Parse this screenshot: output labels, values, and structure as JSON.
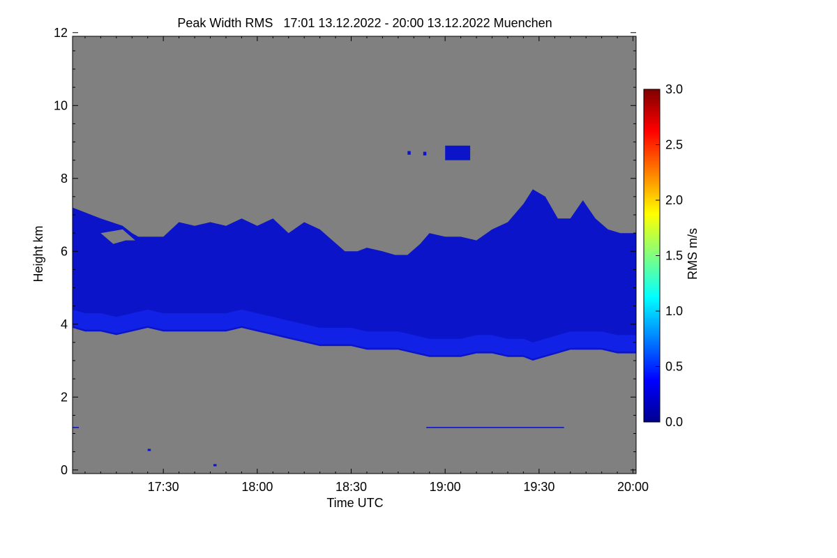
{
  "chart_data": {
    "type": "heatmap",
    "title": "Peak Width RMS   17:01 13.12.2022 - 20:00 13.12.2022 Muenchen",
    "xlabel": "Time UTC",
    "ylabel": "Height km",
    "colorbar_label": "RMS m/s",
    "x_ticks": [
      "17:30",
      "18:00",
      "18:30",
      "19:00",
      "19:30",
      "20:00"
    ],
    "x_tick_minutes": [
      1050,
      1080,
      1110,
      1140,
      1170,
      1200
    ],
    "xlim_minutes": [
      1021,
      1201
    ],
    "y_ticks": [
      "0",
      "2",
      "4",
      "6",
      "8",
      "10",
      "12"
    ],
    "y_tick_values": [
      0,
      2,
      4,
      6,
      8,
      10,
      12
    ],
    "ylim": [
      -0.1,
      11.9
    ],
    "colorbar_ticks": [
      "0.0",
      "0.5",
      "1.0",
      "1.5",
      "2.0",
      "2.5",
      "3.0"
    ],
    "colorbar_tick_values": [
      0,
      0.5,
      1.0,
      1.5,
      2.0,
      2.5,
      3.0
    ],
    "colorbar_range": [
      0,
      3.0
    ],
    "colors": {
      "background": "#808080",
      "signal_dark": "#0b14c8",
      "signal_bright": "#1a2cff",
      "colormap": [
        "#00008f",
        "#0000ff",
        "#0080ff",
        "#00ffff",
        "#80ff80",
        "#ffff00",
        "#ff8000",
        "#ff0000",
        "#800000"
      ]
    },
    "cloud_layer": {
      "description_value_rms": 0.3,
      "top_km": [
        [
          1021,
          7.2
        ],
        [
          1024,
          7.1
        ],
        [
          1030,
          6.9
        ],
        [
          1037,
          6.7
        ],
        [
          1040,
          6.5
        ],
        [
          1042,
          6.4
        ],
        [
          1050,
          6.4
        ],
        [
          1055,
          6.8
        ],
        [
          1060,
          6.7
        ],
        [
          1065,
          6.8
        ],
        [
          1070,
          6.7
        ],
        [
          1075,
          6.9
        ],
        [
          1080,
          6.7
        ],
        [
          1085,
          6.9
        ],
        [
          1090,
          6.5
        ],
        [
          1095,
          6.8
        ],
        [
          1100,
          6.6
        ],
        [
          1104,
          6.3
        ],
        [
          1108,
          6.0
        ],
        [
          1112,
          6.0
        ],
        [
          1115,
          6.1
        ],
        [
          1120,
          6.0
        ],
        [
          1124,
          5.9
        ],
        [
          1128,
          5.9
        ],
        [
          1132,
          6.2
        ],
        [
          1135,
          6.5
        ],
        [
          1140,
          6.4
        ],
        [
          1145,
          6.4
        ],
        [
          1150,
          6.3
        ],
        [
          1155,
          6.6
        ],
        [
          1160,
          6.8
        ],
        [
          1165,
          7.3
        ],
        [
          1168,
          7.7
        ],
        [
          1172,
          7.5
        ],
        [
          1176,
          6.9
        ],
        [
          1180,
          6.9
        ],
        [
          1184,
          7.4
        ],
        [
          1188,
          6.9
        ],
        [
          1192,
          6.6
        ],
        [
          1196,
          6.5
        ],
        [
          1201,
          6.5
        ]
      ],
      "base_km": [
        [
          1021,
          3.9
        ],
        [
          1025,
          3.8
        ],
        [
          1030,
          3.8
        ],
        [
          1035,
          3.7
        ],
        [
          1040,
          3.8
        ],
        [
          1045,
          3.9
        ],
        [
          1050,
          3.8
        ],
        [
          1055,
          3.8
        ],
        [
          1060,
          3.8
        ],
        [
          1065,
          3.8
        ],
        [
          1070,
          3.8
        ],
        [
          1075,
          3.9
        ],
        [
          1080,
          3.8
        ],
        [
          1085,
          3.7
        ],
        [
          1090,
          3.6
        ],
        [
          1095,
          3.5
        ],
        [
          1100,
          3.4
        ],
        [
          1105,
          3.4
        ],
        [
          1110,
          3.4
        ],
        [
          1115,
          3.3
        ],
        [
          1120,
          3.3
        ],
        [
          1125,
          3.3
        ],
        [
          1130,
          3.2
        ],
        [
          1135,
          3.1
        ],
        [
          1140,
          3.1
        ],
        [
          1145,
          3.1
        ],
        [
          1150,
          3.2
        ],
        [
          1155,
          3.2
        ],
        [
          1160,
          3.1
        ],
        [
          1165,
          3.1
        ],
        [
          1168,
          3.0
        ],
        [
          1172,
          3.1
        ],
        [
          1176,
          3.2
        ],
        [
          1180,
          3.3
        ],
        [
          1185,
          3.3
        ],
        [
          1190,
          3.3
        ],
        [
          1195,
          3.2
        ],
        [
          1201,
          3.2
        ]
      ],
      "gaps": [
        [
          [
            1030,
            6.5
          ],
          [
            1034,
            6.2
          ],
          [
            1038,
            6.3
          ],
          [
            1041,
            6.3
          ],
          [
            1037,
            6.6
          ]
        ]
      ]
    },
    "isolated_patches": [
      {
        "x": [
          1140,
          1148
        ],
        "bottom_km": 8.5,
        "top_km": 8.9
      },
      {
        "x": [
          1128,
          1129
        ],
        "bottom_km": 8.65,
        "top_km": 8.75
      },
      {
        "x": [
          1133,
          1134
        ],
        "bottom_km": 8.63,
        "top_km": 8.73
      },
      {
        "x": [
          1134,
          1178
        ],
        "bottom_km": 1.15,
        "top_km": 1.18
      },
      {
        "x": [
          1021,
          1023
        ],
        "bottom_km": 1.15,
        "top_km": 1.18
      },
      {
        "x": [
          1045,
          1046
        ],
        "bottom_km": 0.52,
        "top_km": 0.58
      },
      {
        "x": [
          1066,
          1067
        ],
        "bottom_km": 0.1,
        "top_km": 0.16
      }
    ]
  }
}
